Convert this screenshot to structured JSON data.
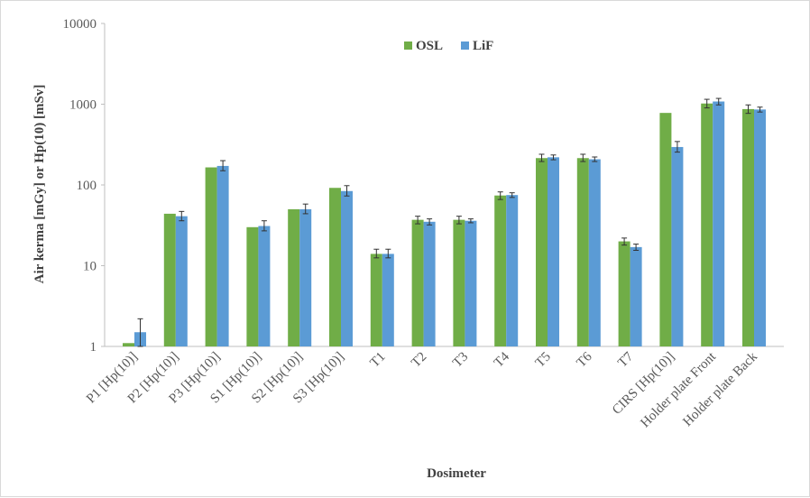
{
  "chart_data": {
    "type": "bar",
    "title": "",
    "xlabel": "Dosimeter",
    "ylabel": "Air kerma [mGy] or Hp(10) [mSv]",
    "yscale": "log",
    "ylim": [
      1,
      10000
    ],
    "y_ticks": [
      "1",
      "10",
      "100",
      "1000",
      "10000"
    ],
    "grid": false,
    "legend_position": "top-center",
    "categories": [
      "P1 [Hp(10)]",
      "P2 [Hp(10)]",
      "P3 [Hp(10)]",
      "S1 [Hp(10)]",
      "S2 [Hp(10)]",
      "S3 [Hp(10)]",
      "T1",
      "T2",
      "T3",
      "T4",
      "T5",
      "T6",
      "T7",
      "CIRS [Hp(10)]",
      "Holder plate Front",
      "Holder plate Back"
    ],
    "series": [
      {
        "name": "OSL",
        "color": "#70ad47",
        "values": [
          1.1,
          44,
          165,
          30,
          50,
          92,
          14,
          37,
          37,
          74,
          215,
          215,
          20,
          780,
          1020,
          870
        ],
        "error_low": [
          null,
          null,
          null,
          null,
          null,
          null,
          12.5,
          33,
          33,
          66,
          195,
          195,
          18,
          null,
          900,
          770
        ],
        "error_high": [
          null,
          null,
          null,
          null,
          null,
          null,
          16,
          41,
          41,
          82,
          240,
          240,
          22,
          null,
          1150,
          980
        ]
      },
      {
        "name": "LiF",
        "color": "#5b9bd5",
        "values": [
          1.5,
          41,
          172,
          31,
          50,
          84,
          14,
          35,
          36,
          75,
          220,
          208,
          17,
          295,
          1080,
          860
        ],
        "error_low": [
          1.0,
          36,
          150,
          27,
          44,
          73,
          12.5,
          32,
          34,
          70,
          205,
          195,
          15.5,
          255,
          980,
          800
        ],
        "error_high": [
          2.2,
          47,
          200,
          36,
          58,
          98,
          16,
          38,
          38,
          80,
          235,
          222,
          18.5,
          345,
          1180,
          920
        ]
      }
    ]
  }
}
